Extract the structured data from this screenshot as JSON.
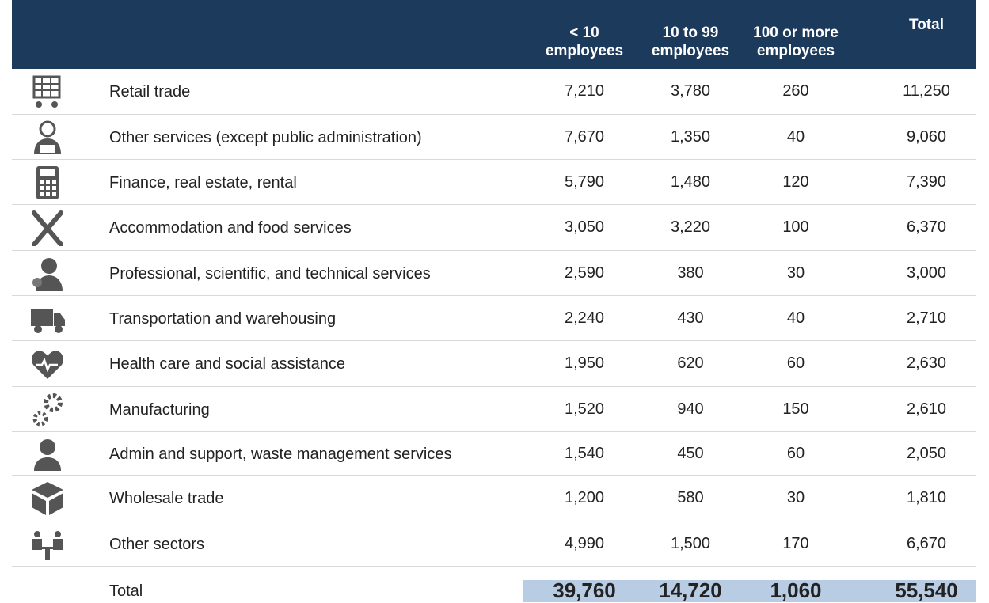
{
  "table": {
    "columns": [
      "< 10 employees",
      "10 to 99 employees",
      "100 or more employees",
      "Total"
    ],
    "rows": [
      {
        "label": "Retail trade",
        "values": [
          "7,210",
          "3,780",
          "260",
          "11,250"
        ]
      },
      {
        "label": "Other services (except public administration)",
        "values": [
          "7,670",
          "1,350",
          "40",
          "9,060"
        ]
      },
      {
        "label": "Finance, real estate, rental",
        "values": [
          "5,790",
          "1,480",
          "120",
          "7,390"
        ]
      },
      {
        "label": "Accommodation and food services",
        "values": [
          "3,050",
          "3,220",
          "100",
          "6,370"
        ]
      },
      {
        "label": "Professional, scientific, and technical services",
        "values": [
          "2,590",
          "380",
          "30",
          "3,000"
        ]
      },
      {
        "label": "Transportation and warehousing",
        "values": [
          "2,240",
          "430",
          "40",
          "2,710"
        ]
      },
      {
        "label": "Health care and social assistance",
        "values": [
          "1,950",
          "620",
          "60",
          "2,630"
        ]
      },
      {
        "label": "Manufacturing",
        "values": [
          "1,520",
          "940",
          "150",
          "2,610"
        ]
      },
      {
        "label": "Admin and support, waste management services",
        "values": [
          "1,540",
          "450",
          "60",
          "2,050"
        ]
      },
      {
        "label": "Wholesale trade",
        "values": [
          "1,200",
          "580",
          "30",
          "1,810"
        ]
      },
      {
        "label": "Other sectors",
        "values": [
          "4,990",
          "1,500",
          "170",
          "6,670"
        ]
      }
    ],
    "total": {
      "label": "Total",
      "values": [
        "39,760",
        "14,720",
        "1,060",
        "55,540"
      ]
    }
  }
}
